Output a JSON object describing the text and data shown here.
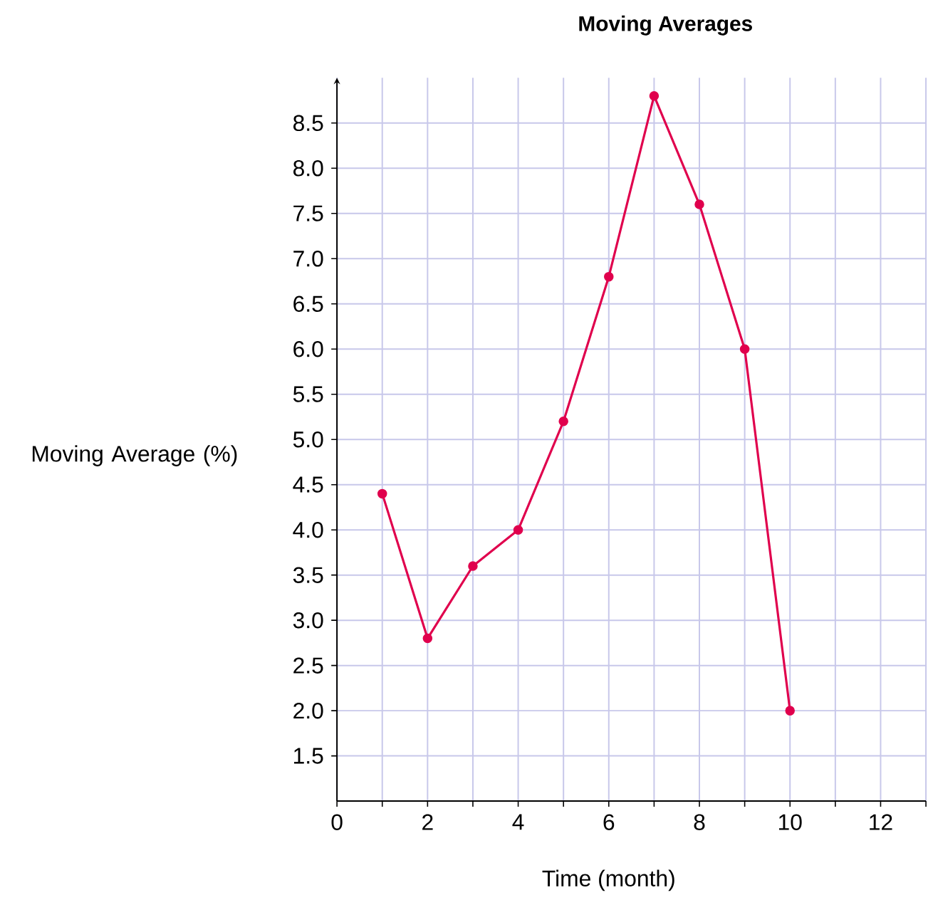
{
  "chart_data": {
    "type": "line",
    "title": "Moving Averages",
    "xlabel": "Time (month)",
    "ylabel": "Moving Average (%)",
    "x": [
      1,
      2,
      3,
      4,
      5,
      6,
      7,
      8,
      9,
      10
    ],
    "series": [
      {
        "color": "#e0004d",
        "values": [
          4.4,
          2.8,
          3.6,
          4.0,
          5.2,
          6.8,
          8.8,
          7.6,
          6.0,
          2.0
        ]
      }
    ],
    "xlim": [
      0,
      13
    ],
    "ylim": [
      1.0,
      9.0
    ],
    "xticks": [
      0,
      {
        "value": 1,
        "label": null
      },
      2,
      {
        "value": 3,
        "label": null
      },
      4,
      {
        "value": 5,
        "label": null
      },
      6,
      {
        "value": 7,
        "label": null
      },
      8,
      {
        "value": 9,
        "label": null
      },
      10,
      {
        "value": 11,
        "label": null
      },
      12,
      {
        "value": 13,
        "label": null
      }
    ],
    "yticks": [
      1.5,
      {
        "value": 2.0,
        "label": "2.0"
      },
      2.5,
      {
        "value": 3.0,
        "label": "3.0"
      },
      3.5,
      {
        "value": 4.0,
        "label": "4.0"
      },
      4.5,
      {
        "value": 5.0,
        "label": "5.0"
      },
      5.5,
      {
        "value": 6.0,
        "label": "6.0"
      },
      6.5,
      {
        "value": 7.0,
        "label": "7.0"
      },
      7.5,
      {
        "value": 8.0,
        "label": "8.0"
      },
      8.5
    ],
    "grid": true,
    "marker": "circle",
    "line_style": "solid"
  }
}
